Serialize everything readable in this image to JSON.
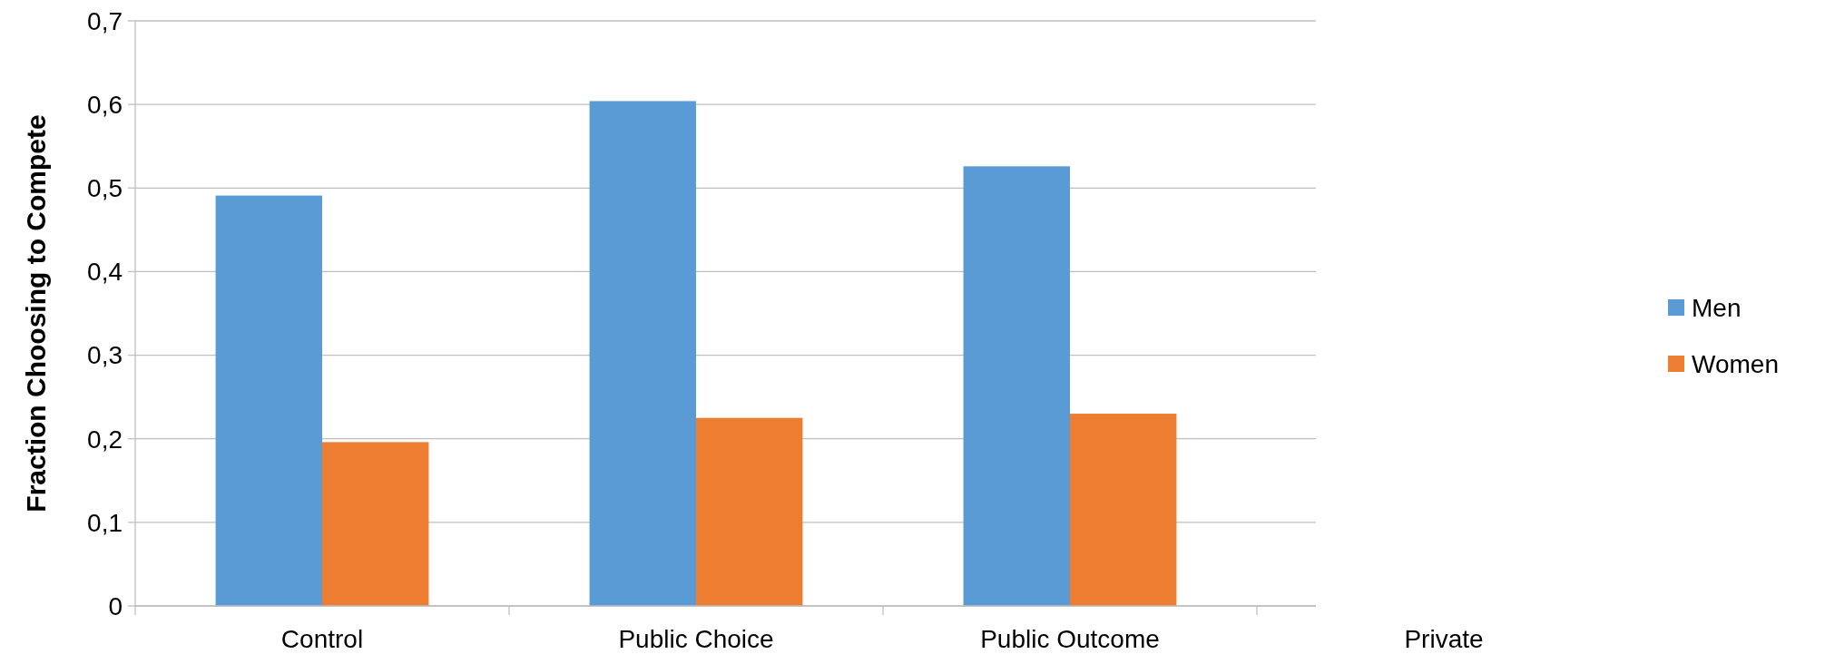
{
  "chart_data": {
    "type": "bar",
    "ylabel": "Fraction Choosing to Compete",
    "categories": [
      "Control",
      "Public Choice",
      "Public Outcome",
      "Private"
    ],
    "series": [
      {
        "name": "Men",
        "color": "#5b9bd5",
        "values": [
          0.491,
          0.604,
          0.526,
          null
        ]
      },
      {
        "name": "Women",
        "color": "#ed7d31",
        "values": [
          0.196,
          0.225,
          0.23,
          null
        ]
      }
    ],
    "ylim": [
      0,
      0.7
    ],
    "yticks": [
      {
        "value": 0,
        "label": "0"
      },
      {
        "value": 0.1,
        "label": "0,1"
      },
      {
        "value": 0.2,
        "label": "0,2"
      },
      {
        "value": 0.3,
        "label": "0,3"
      },
      {
        "value": 0.4,
        "label": "0,4"
      },
      {
        "value": 0.5,
        "label": "0,5"
      },
      {
        "value": 0.6,
        "label": "0,6"
      },
      {
        "value": 0.7,
        "label": "0,7"
      }
    ],
    "grid": "y",
    "legend": "right"
  }
}
